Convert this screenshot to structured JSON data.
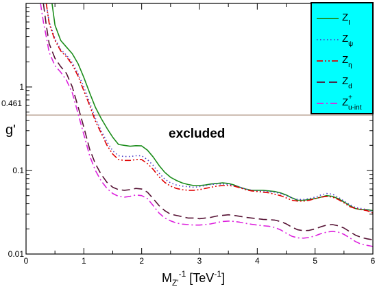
{
  "chart_data": {
    "type": "line",
    "xlabel_main": "M",
    "xlabel_sub": "Z'",
    "xlabel_sup": "-1",
    "xlabel_unit_pre": " [TeV",
    "xlabel_unit_sup": "-1",
    "xlabel_unit_post": "]",
    "ylabel": "g'",
    "xlim": [
      0,
      6
    ],
    "ylim": [
      0.01,
      10
    ],
    "yscale": "log",
    "x_ticks": [
      "0",
      "1",
      "2",
      "3",
      "4",
      "5",
      "6"
    ],
    "y_ticks": [
      {
        "value": 0.01,
        "label": "0.01"
      },
      {
        "value": 0.1,
        "label": "0.1"
      },
      {
        "value": 1,
        "label": "1"
      }
    ],
    "reference_line": {
      "value": 0.461,
      "label": "0.461",
      "color": "#b8a090"
    },
    "annotation": "excluded",
    "legend_placement": "top-right",
    "legend_bg": "#00ffff",
    "series": [
      {
        "name": "Z_I",
        "label_main": "Z",
        "label_sub": "I",
        "label_sup": "",
        "color": "#1a8c1a",
        "dash": "",
        "x": [
          0.45,
          0.5,
          0.6,
          0.7,
          0.8,
          0.9,
          1.0,
          1.1,
          1.2,
          1.3,
          1.4,
          1.5,
          1.6,
          1.7,
          1.8,
          1.9,
          2.0,
          2.1,
          2.2,
          2.3,
          2.4,
          2.5,
          2.6,
          2.7,
          2.8,
          2.9,
          3.0,
          3.1,
          3.2,
          3.3,
          3.4,
          3.5,
          3.6,
          3.7,
          3.8,
          3.9,
          4.0,
          4.1,
          4.2,
          4.3,
          4.4,
          4.5,
          4.6,
          4.7,
          4.8,
          4.9,
          5.0,
          5.1,
          5.2,
          5.3,
          5.4,
          5.5,
          5.6,
          5.7,
          5.8,
          5.9,
          6.0
        ],
        "y": [
          10.0,
          5.5,
          3.6,
          3.0,
          2.5,
          1.9,
          1.3,
          0.85,
          0.57,
          0.42,
          0.32,
          0.25,
          0.205,
          0.2,
          0.195,
          0.198,
          0.197,
          0.175,
          0.145,
          0.115,
          0.095,
          0.083,
          0.076,
          0.071,
          0.068,
          0.066,
          0.066,
          0.067,
          0.069,
          0.07,
          0.071,
          0.07,
          0.067,
          0.063,
          0.06,
          0.058,
          0.058,
          0.058,
          0.057,
          0.056,
          0.054,
          0.051,
          0.047,
          0.044,
          0.044,
          0.045,
          0.046,
          0.048,
          0.05,
          0.049,
          0.046,
          0.042,
          0.038,
          0.035,
          0.034,
          0.034,
          0.033
        ]
      },
      {
        "name": "Z_psi",
        "label_main": "Z",
        "label_sub": "ψ",
        "label_sup": "",
        "color": "#4a38c8",
        "dash": "1.5 3.5",
        "x": [
          0.35,
          0.4,
          0.5,
          0.6,
          0.7,
          0.8,
          0.9,
          1.0,
          1.1,
          1.2,
          1.3,
          1.4,
          1.5,
          1.6,
          1.7,
          1.8,
          1.9,
          2.0,
          2.1,
          2.2,
          2.3,
          2.4,
          2.5,
          2.6,
          2.7,
          2.8,
          2.9,
          3.0,
          3.1,
          3.2,
          3.3,
          3.4,
          3.5,
          3.6,
          3.7,
          3.8,
          3.9,
          4.0,
          4.1,
          4.2,
          4.3,
          4.4,
          4.5,
          4.6,
          4.7,
          4.8,
          4.9,
          5.0,
          5.1,
          5.2,
          5.3,
          5.4,
          5.5,
          5.6,
          5.7,
          5.8,
          5.9,
          6.0
        ],
        "y": [
          10.0,
          6.0,
          3.8,
          2.8,
          2.4,
          1.95,
          1.45,
          1.0,
          0.65,
          0.42,
          0.3,
          0.22,
          0.172,
          0.15,
          0.147,
          0.147,
          0.15,
          0.15,
          0.135,
          0.115,
          0.093,
          0.079,
          0.071,
          0.067,
          0.065,
          0.064,
          0.063,
          0.064,
          0.066,
          0.068,
          0.069,
          0.069,
          0.068,
          0.066,
          0.063,
          0.06,
          0.058,
          0.057,
          0.057,
          0.056,
          0.055,
          0.053,
          0.05,
          0.047,
          0.045,
          0.045,
          0.046,
          0.048,
          0.051,
          0.053,
          0.052,
          0.048,
          0.043,
          0.039,
          0.036,
          0.035,
          0.034,
          0.032
        ]
      },
      {
        "name": "Z_eta",
        "label_main": "Z",
        "label_sub": "η",
        "label_sup": "",
        "color": "#e00000",
        "dash": "9 3 2 3 2 3",
        "x": [
          0.35,
          0.4,
          0.5,
          0.6,
          0.7,
          0.8,
          0.9,
          1.0,
          1.1,
          1.2,
          1.3,
          1.4,
          1.5,
          1.6,
          1.7,
          1.8,
          1.9,
          2.0,
          2.1,
          2.2,
          2.3,
          2.4,
          2.5,
          2.6,
          2.7,
          2.8,
          2.9,
          3.0,
          3.1,
          3.2,
          3.3,
          3.4,
          3.5,
          3.6,
          3.7,
          3.8,
          3.9,
          4.0,
          4.1,
          4.2,
          4.3,
          4.4,
          4.5,
          4.6,
          4.7,
          4.8,
          4.9,
          5.0,
          5.1,
          5.2,
          5.3,
          5.4,
          5.5,
          5.6,
          5.7,
          5.8,
          5.9,
          6.0
        ],
        "y": [
          10.0,
          5.8,
          3.6,
          2.7,
          2.3,
          1.85,
          1.35,
          0.9,
          0.6,
          0.39,
          0.28,
          0.2,
          0.157,
          0.135,
          0.132,
          0.132,
          0.135,
          0.135,
          0.121,
          0.103,
          0.084,
          0.072,
          0.065,
          0.061,
          0.059,
          0.058,
          0.058,
          0.059,
          0.061,
          0.063,
          0.065,
          0.066,
          0.066,
          0.065,
          0.062,
          0.059,
          0.057,
          0.056,
          0.055,
          0.054,
          0.052,
          0.05,
          0.047,
          0.044,
          0.043,
          0.043,
          0.044,
          0.046,
          0.048,
          0.049,
          0.048,
          0.045,
          0.041,
          0.037,
          0.035,
          0.034,
          0.033,
          0.031
        ]
      },
      {
        "name": "Z_d",
        "label_main": "Z",
        "label_sub": "d",
        "label_sup": "",
        "color": "#551133",
        "dash": "12 6",
        "x": [
          0.3,
          0.35,
          0.4,
          0.5,
          0.6,
          0.7,
          0.8,
          0.9,
          1.0,
          1.1,
          1.2,
          1.3,
          1.4,
          1.5,
          1.6,
          1.7,
          1.8,
          1.9,
          2.0,
          2.1,
          2.2,
          2.3,
          2.4,
          2.5,
          2.6,
          2.7,
          2.8,
          2.9,
          3.0,
          3.1,
          3.2,
          3.3,
          3.4,
          3.5,
          3.6,
          3.7,
          3.8,
          3.9,
          4.0,
          4.1,
          4.2,
          4.3,
          4.4,
          4.5,
          4.6,
          4.7,
          4.8,
          4.9,
          5.0,
          5.1,
          5.2,
          5.3,
          5.4,
          5.5,
          5.6,
          5.7,
          5.8,
          5.9,
          6.0
        ],
        "y": [
          10.0,
          5.5,
          3.3,
          2.2,
          1.75,
          1.45,
          1.0,
          0.58,
          0.33,
          0.18,
          0.12,
          0.09,
          0.072,
          0.063,
          0.059,
          0.058,
          0.059,
          0.061,
          0.06,
          0.055,
          0.046,
          0.038,
          0.033,
          0.03,
          0.029,
          0.028,
          0.027,
          0.027,
          0.0265,
          0.027,
          0.0275,
          0.0285,
          0.029,
          0.0295,
          0.029,
          0.0283,
          0.0275,
          0.027,
          0.0265,
          0.026,
          0.0258,
          0.0255,
          0.0245,
          0.023,
          0.021,
          0.0195,
          0.019,
          0.0192,
          0.02,
          0.0212,
          0.0222,
          0.0225,
          0.0218,
          0.0205,
          0.0185,
          0.0168,
          0.0158,
          0.0152,
          0.0148
        ]
      },
      {
        "name": "Z_u-int",
        "label_main": "Z",
        "label_sub": "u-int",
        "label_sup": "+",
        "color": "#dd22dd",
        "dash": "10 4 2 4",
        "x": [
          0.25,
          0.3,
          0.35,
          0.4,
          0.5,
          0.6,
          0.7,
          0.8,
          0.9,
          1.0,
          1.1,
          1.2,
          1.3,
          1.4,
          1.5,
          1.6,
          1.7,
          1.8,
          1.9,
          2.0,
          2.1,
          2.2,
          2.3,
          2.4,
          2.5,
          2.6,
          2.7,
          2.8,
          2.9,
          3.0,
          3.1,
          3.2,
          3.3,
          3.4,
          3.5,
          3.6,
          3.7,
          3.8,
          3.9,
          4.0,
          4.1,
          4.2,
          4.3,
          4.4,
          4.5,
          4.6,
          4.7,
          4.8,
          4.9,
          5.0,
          5.1,
          5.2,
          5.3,
          5.4,
          5.5,
          5.6,
          5.7,
          5.8,
          5.9,
          6.0
        ],
        "y": [
          10.0,
          6.0,
          4.0,
          2.6,
          1.8,
          1.5,
          1.2,
          0.85,
          0.48,
          0.27,
          0.15,
          0.1,
          0.075,
          0.061,
          0.053,
          0.049,
          0.048,
          0.049,
          0.051,
          0.05,
          0.046,
          0.038,
          0.031,
          0.027,
          0.025,
          0.0235,
          0.0228,
          0.0225,
          0.0222,
          0.0222,
          0.0225,
          0.023,
          0.0238,
          0.0245,
          0.0248,
          0.0246,
          0.024,
          0.0233,
          0.0227,
          0.0222,
          0.0218,
          0.0215,
          0.0208,
          0.0195,
          0.0178,
          0.0163,
          0.0156,
          0.0155,
          0.0158,
          0.0165,
          0.0175,
          0.0183,
          0.0187,
          0.0183,
          0.0172,
          0.0156,
          0.0141,
          0.0131,
          0.0127,
          0.0123
        ]
      }
    ]
  }
}
